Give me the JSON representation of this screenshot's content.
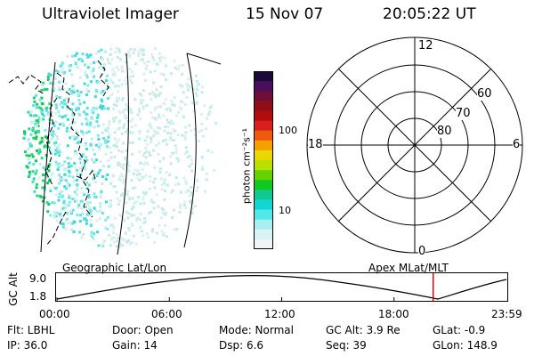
{
  "header": {
    "instrument": "Ultraviolet Imager",
    "date": "15 Nov 07",
    "time": "20:05:22 UT"
  },
  "colorbar": {
    "unit_label": "photon cm⁻²s⁻¹",
    "ticks": [
      "100",
      "10"
    ],
    "colors": [
      "#1a0a3a",
      "#4a0f5a",
      "#6e0f3a",
      "#8e0f1a",
      "#b00d0d",
      "#d81e1e",
      "#ee5a10",
      "#f5a000",
      "#e8d800",
      "#b8e000",
      "#64d200",
      "#10c820",
      "#10c890",
      "#10d8d0",
      "#50e8e8",
      "#a8f0f0",
      "#d8f4f4",
      "#f0f4f4"
    ]
  },
  "polar": {
    "mlt_labels": {
      "top": "12",
      "left": "18",
      "right": "6",
      "bottom": "0"
    },
    "lat_labels": [
      "60",
      "70",
      "80"
    ]
  },
  "track": {
    "alt_axis_label": "GC Alt",
    "alt_ticks": [
      "9.0",
      "1.8"
    ],
    "left_label": "Geographic Lat/Lon",
    "right_label": "Apex MLat/MLT",
    "time_ticks": [
      "00:00",
      "06:00",
      "12:00",
      "18:00",
      "23:59"
    ],
    "marker_time_hours": 20.09,
    "marker_color": "#e00000"
  },
  "status": {
    "filter": "Flt: LBHL",
    "door": "Door: Open",
    "mode": "Mode: Normal",
    "gc_alt": "GC Alt: 3.9 Re",
    "glat": "GLat:  -0.9",
    "ip": "IP: 36.0",
    "gain": "Gain: 14",
    "dsp": "Dsp:    6.6",
    "seq": "Seq: 39",
    "glon": "GLon: 148.9"
  }
}
